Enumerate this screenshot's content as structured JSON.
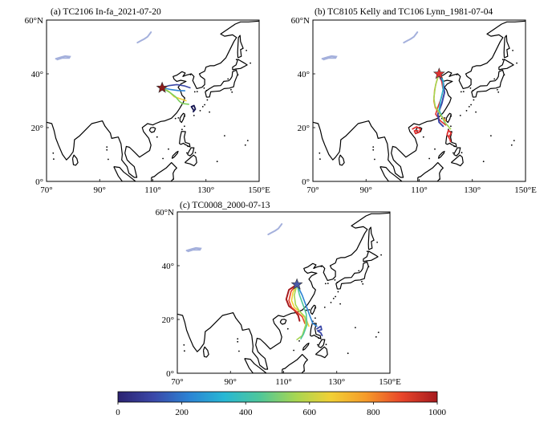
{
  "panels": [
    {
      "id": "a",
      "title": "(a) TC2106 In-fa_2021-07-20",
      "x_ticks": [
        "70°",
        "90°",
        "110°",
        "130°",
        "150°E"
      ],
      "y_ticks": [
        "0°",
        "20°",
        "40°",
        "60°N"
      ],
      "marker": {
        "lon": 113.5,
        "lat": 34.8,
        "color": "#8b1a1a"
      }
    },
    {
      "id": "b",
      "title": "(b) TC8105 Kelly and TC106 Lynn_1981-07-04",
      "x_ticks": [
        "70°",
        "90°",
        "110°",
        "130°",
        "150°E"
      ],
      "y_ticks": [
        "0°",
        "20°",
        "40°",
        "60°N"
      ],
      "marker": {
        "lon": 117.5,
        "lat": 40.0,
        "color": "#e03131"
      }
    },
    {
      "id": "c",
      "title": "(c) TC0008_2000-07-13",
      "x_ticks": [
        "70°",
        "90°",
        "110°",
        "130°",
        "150°E"
      ],
      "y_ticks": [
        "0°",
        "20°",
        "40°",
        "60°N"
      ],
      "marker": {
        "lon": 115.0,
        "lat": 33.0,
        "color": "#4a5aa8"
      }
    }
  ],
  "colorbar": {
    "ticks": [
      "0",
      "200",
      "400",
      "600",
      "800",
      "1000"
    ],
    "min": 0,
    "max": 1000,
    "colors": [
      "#2b2270",
      "#3b48a8",
      "#2c83d4",
      "#27b7d4",
      "#4fc79a",
      "#a6d652",
      "#f2d035",
      "#f59a2a",
      "#e8452a",
      "#a61a1e"
    ]
  }
}
